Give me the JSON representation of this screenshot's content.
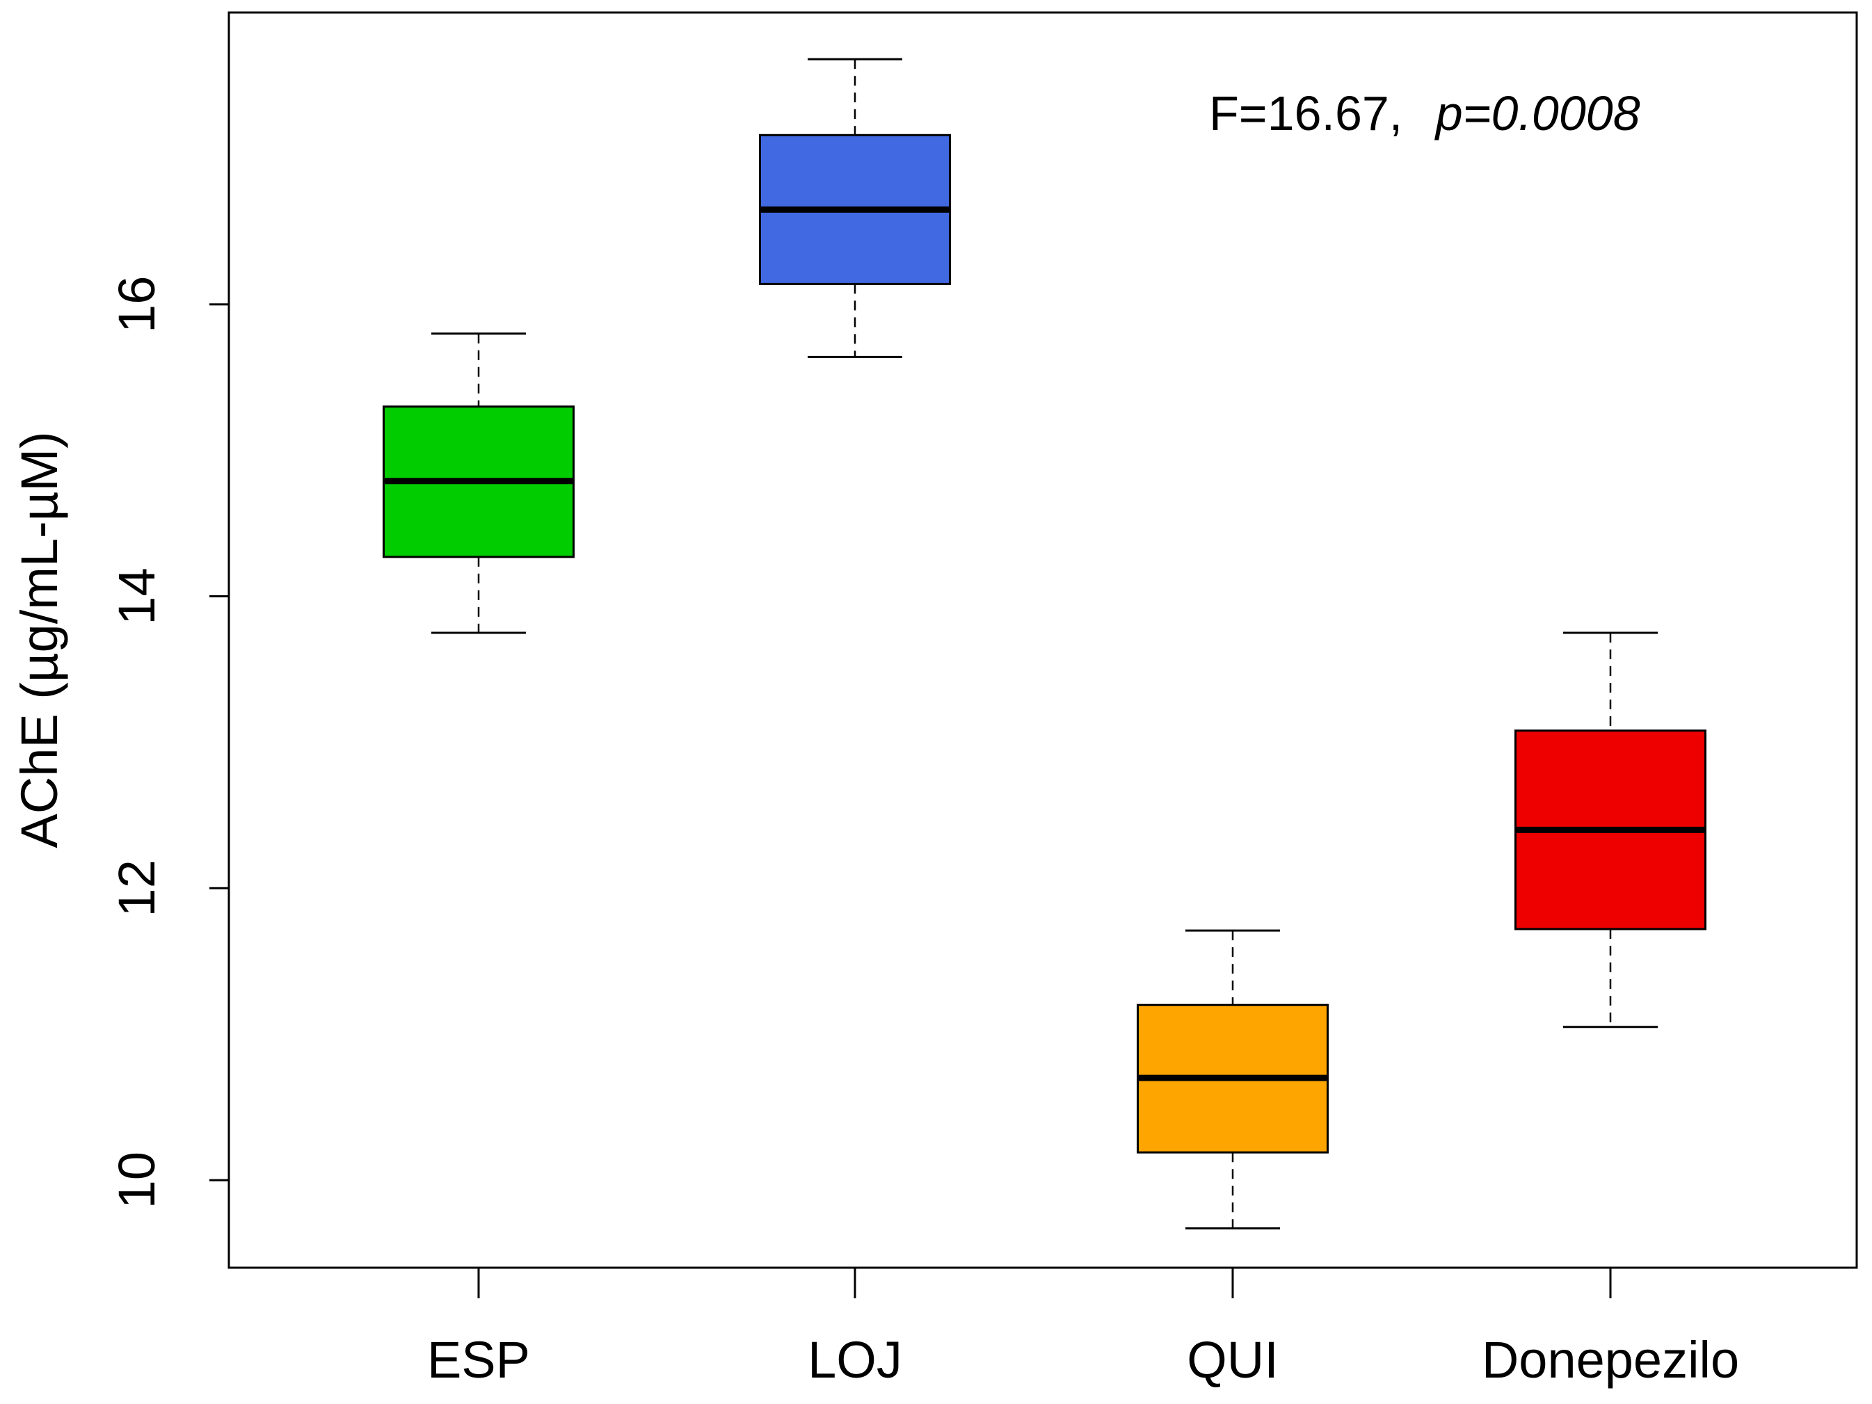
{
  "chart_data": {
    "type": "boxplot",
    "title": "",
    "xlabel": "",
    "ylabel": "AChE (µg/mL-µM)",
    "ylim": [
      9.4,
      18.0
    ],
    "yticks": [
      10,
      12,
      14,
      16
    ],
    "categories": [
      "ESP",
      "LOJ",
      "QUI",
      "Donepezilo"
    ],
    "boxes": [
      {
        "name": "ESP",
        "min": 13.75,
        "q1": 14.27,
        "median": 14.79,
        "q3": 15.3,
        "max": 15.8,
        "color": "#00cc00"
      },
      {
        "name": "LOJ",
        "min": 15.64,
        "q1": 16.14,
        "median": 16.65,
        "q3": 17.16,
        "max": 17.68,
        "color": "#4169e1"
      },
      {
        "name": "QUI",
        "min": 9.67,
        "q1": 10.19,
        "median": 10.7,
        "q3": 11.2,
        "max": 11.71,
        "color": "#ffa500"
      },
      {
        "name": "Donepezilo",
        "min": 11.05,
        "q1": 11.72,
        "median": 12.4,
        "q3": 13.08,
        "max": 13.75,
        "color": "#ee0000"
      }
    ],
    "annotation": {
      "prefix": "F=16.67,",
      "p_text": "p=0.0008"
    },
    "grid": false
  }
}
